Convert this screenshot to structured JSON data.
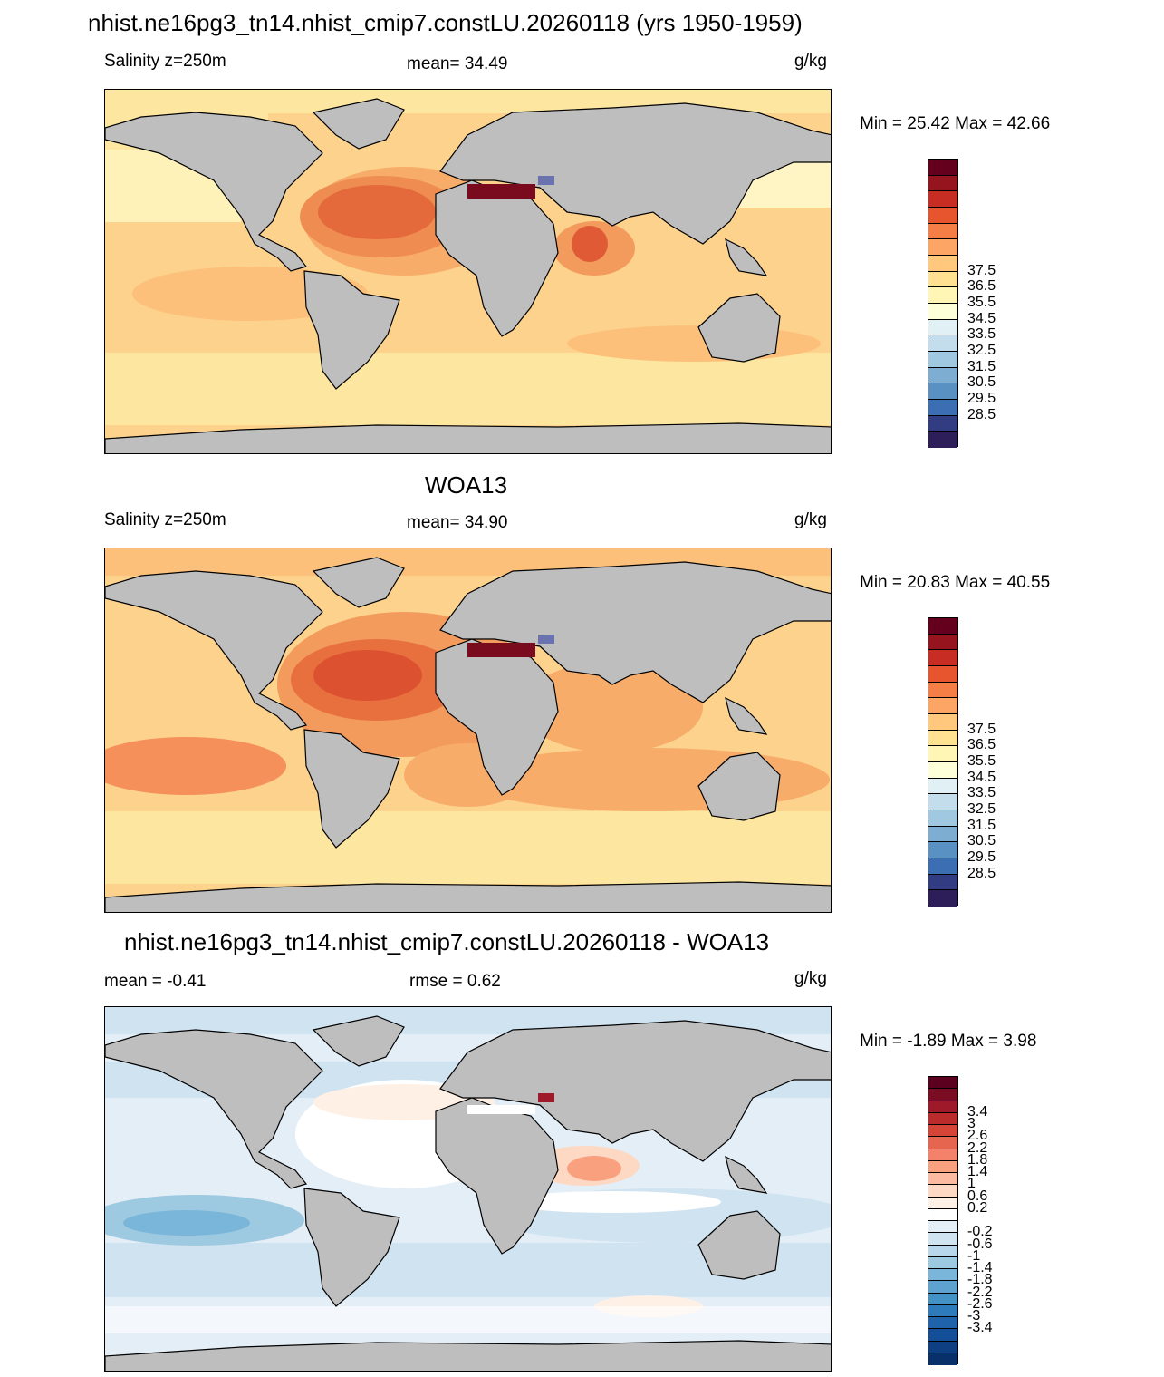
{
  "main_title": "nhist.ne16pg3_tn14.nhist_cmip7.constLU.20260118 (yrs 1950-1959)",
  "panels": [
    {
      "id": "model",
      "heading": "",
      "left_label": "Salinity z=250m",
      "center_label": "mean=  34.49",
      "units": "g/kg",
      "minmax": "Min =  25.42 Max =  42.66",
      "colorbar": {
        "colors": [
          "#2d1e5a",
          "#323c82",
          "#3c6eb4",
          "#5a91c3",
          "#7daed2",
          "#a0c8e1",
          "#c3ddec",
          "#e1f0f5",
          "#fcffd7",
          "#fff5b4",
          "#ffe191",
          "#ffc87d",
          "#fca564",
          "#f57d46",
          "#e6552d",
          "#c82d23",
          "#96141e",
          "#64001e"
        ],
        "labels": [
          "28.5",
          "29.5",
          "30.5",
          "31.5",
          "32.5",
          "33.5",
          "34.5",
          "35.5",
          "36.5",
          "37.5"
        ],
        "label_steps": [
          2,
          4,
          6,
          8,
          10,
          12,
          14,
          16,
          18,
          20
        ]
      }
    },
    {
      "id": "obs",
      "heading": "WOA13",
      "left_label": "Salinity z=250m",
      "center_label": "mean=  34.90",
      "units": "g/kg",
      "minmax": "Min =  20.83 Max =  40.55",
      "colorbar": {
        "colors": [
          "#2d1e5a",
          "#323c82",
          "#3c6eb4",
          "#5a91c3",
          "#7daed2",
          "#a0c8e1",
          "#c3ddec",
          "#e1f0f5",
          "#fcffd7",
          "#fff5b4",
          "#ffe191",
          "#ffc87d",
          "#fca564",
          "#f57d46",
          "#e6552d",
          "#c82d23",
          "#96141e",
          "#64001e"
        ],
        "labels": [
          "28.5",
          "29.5",
          "30.5",
          "31.5",
          "32.5",
          "33.5",
          "34.5",
          "35.5",
          "36.5",
          "37.5"
        ],
        "label_steps": [
          2,
          4,
          6,
          8,
          10,
          12,
          14,
          16,
          18,
          20
        ]
      }
    },
    {
      "id": "diff",
      "heading": "nhist.ne16pg3_tn14.nhist_cmip7.constLU.20260118 - WOA13",
      "left_label": "mean =  -0.41",
      "center_label": "rmse =   0.62",
      "units": "g/kg",
      "minmax": "Min =  -1.89 Max =   3.98",
      "colorbar": {
        "colors": [
          "#08306b",
          "#0d3f82",
          "#134f99",
          "#1f64aa",
          "#2e7bbb",
          "#4292c6",
          "#5ea3d0",
          "#7ab6d9",
          "#9ecae1",
          "#b8d7ea",
          "#d0e3f1",
          "#e3eef7",
          "#ffffff",
          "#fff0e6",
          "#fdd9c4",
          "#fcbba1",
          "#f9a07f",
          "#f4826a",
          "#e6654f",
          "#d44537",
          "#bb2b2b",
          "#9e1a2a",
          "#7a0c24",
          "#5c0020"
        ],
        "labels": [
          "-3.4",
          "-3",
          "-2.6",
          "-2.2",
          "-1.8",
          "-1.4",
          "-1",
          "-0.6",
          "-0.2",
          "0.2",
          "0.6",
          "1",
          "1.4",
          "1.8",
          "2.2",
          "2.6",
          "3",
          "3.4"
        ],
        "label_steps": [
          3,
          4,
          5,
          6,
          7,
          8,
          9,
          10,
          11,
          13,
          14,
          15,
          16,
          17,
          18,
          19,
          20,
          21
        ]
      }
    }
  ]
}
